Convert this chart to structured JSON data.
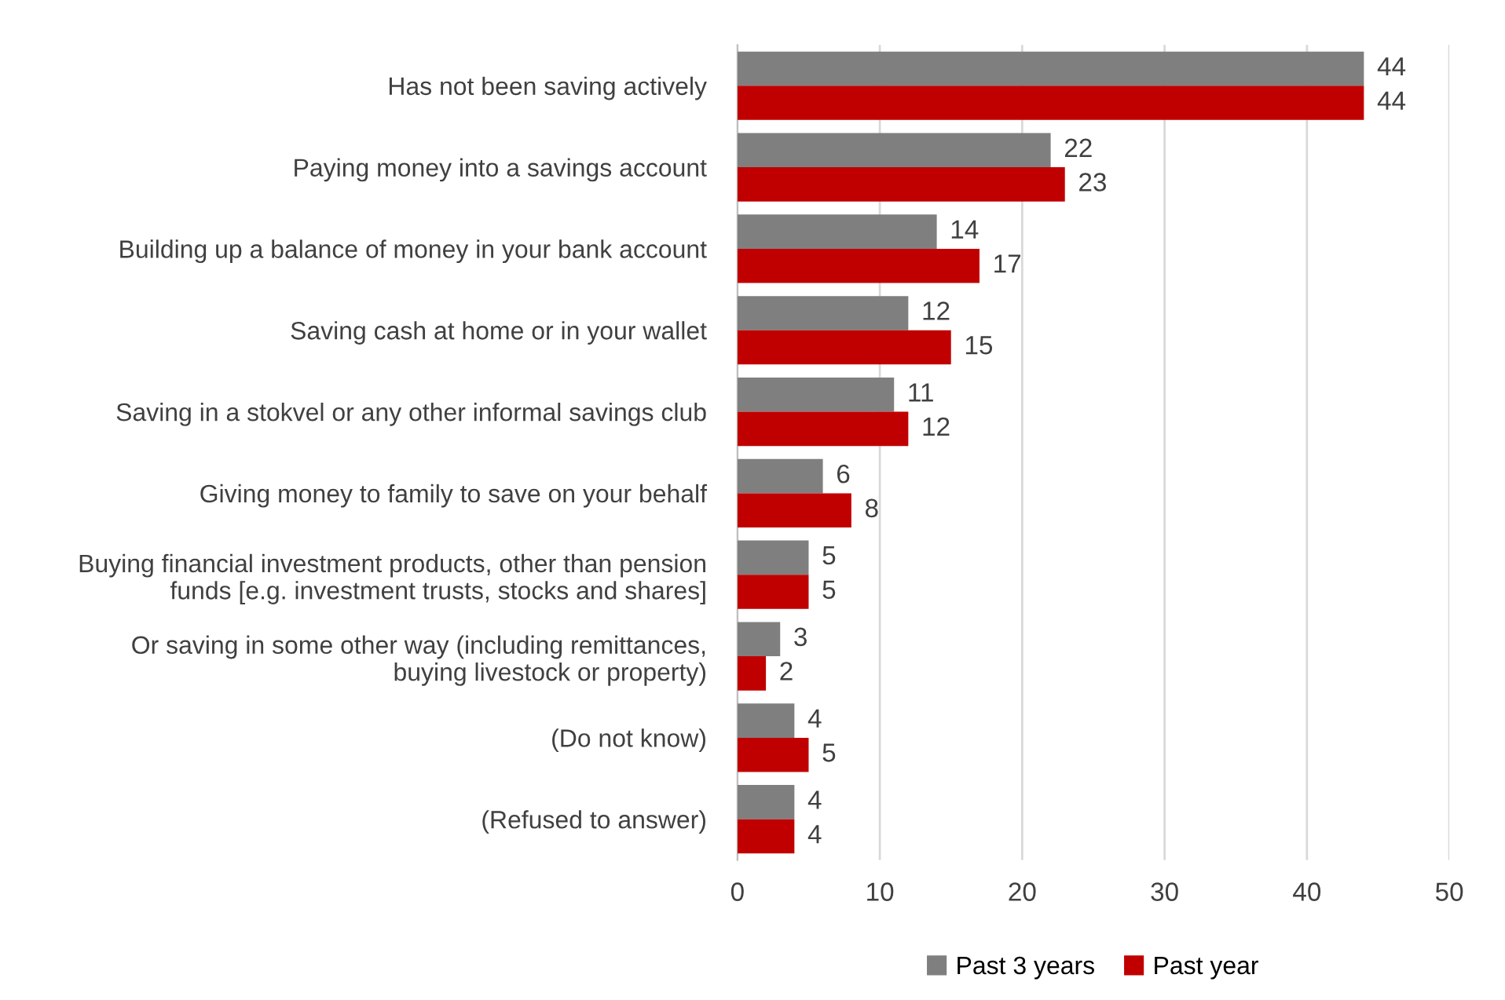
{
  "chart_data": {
    "type": "bar",
    "orientation": "horizontal",
    "categories": [
      "Has not been saving actively",
      "Paying money into a savings account",
      "Building up a balance of money in your bank account",
      "Saving cash at home or in your wallet",
      "Saving in a stokvel or any other informal savings club",
      "Giving money to family to save on your behalf",
      "Buying financial investment products, other than pension\nfunds [e.g. investment trusts, stocks and shares]",
      "Or saving in some other way (including remittances,\nbuying livestock or property)",
      "(Do not know)",
      "(Refused to answer)"
    ],
    "series": [
      {
        "name": "Past 3 years",
        "color": "#7f7f7f",
        "values": [
          44,
          22,
          14,
          12,
          11,
          6,
          5,
          3,
          4,
          4
        ]
      },
      {
        "name": "Past year",
        "color": "#c00000",
        "values": [
          44,
          23,
          17,
          15,
          12,
          8,
          5,
          2,
          5,
          4
        ]
      }
    ],
    "xlim": [
      0,
      50
    ],
    "xticks": [
      0,
      10,
      20,
      30,
      40,
      50
    ],
    "grid": "x",
    "legend": "bottom",
    "data_labels": true
  }
}
